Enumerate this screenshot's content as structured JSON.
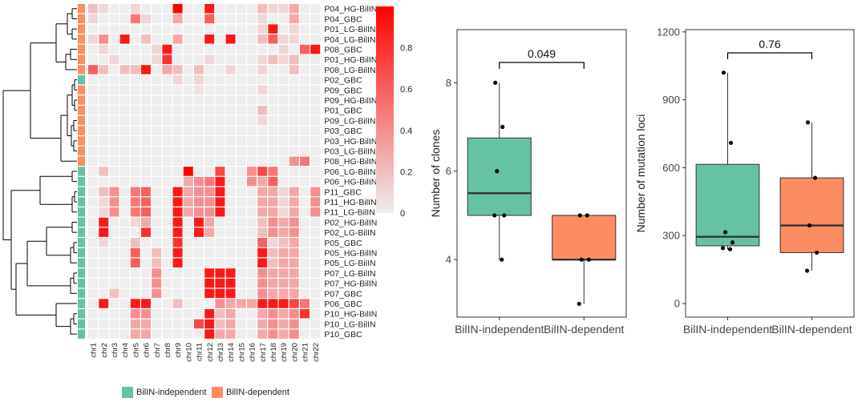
{
  "colors": {
    "independent": "#66c2a5",
    "dependent": "#fc8d62",
    "heat_high": "#ff0000",
    "heat_low": "#eeeeee",
    "box_border": "#333333"
  },
  "legend": {
    "items": [
      {
        "name": "BilIN-independent",
        "color": "#66c2a5"
      },
      {
        "name": "BilIN-dependent",
        "color": "#fc8d62"
      }
    ]
  },
  "chart_data": [
    {
      "type": "heatmap",
      "rows": [
        "P04_HG-BilIN",
        "P04_GBC",
        "P01_LG-BilIN",
        "P04_LG-BilIN",
        "P08_GBC",
        "P01_HG-BilIN",
        "P08_LG-BilIN",
        "P02_GBC",
        "P09_GBC",
        "P09_HG-BilIN",
        "P01_GBC",
        "P09_LG-BilIN",
        "P03_GBC",
        "P03_HG-BilIN",
        "P03_LG-BilIN",
        "P08_HG-BilIN",
        "P06_LG-BilIN",
        "P06_HG-BilIN",
        "P11_GBC",
        "P11_HG-BilIN",
        "P11_LG-BilIN",
        "P02_HG-BilIN",
        "P02_LG-BilIN",
        "P05_GBC",
        "P05_HG-BilIN",
        "P05_LG-BilIN",
        "P07_LG-BilIN",
        "P07_HG-BilIN",
        "P07_GBC",
        "P06_GBC",
        "P10_HG-BilIN",
        "P10_LG-BilIN",
        "P10_GBC"
      ],
      "row_groups": [
        "D",
        "D",
        "D",
        "D",
        "D",
        "D",
        "D",
        "I",
        "D",
        "D",
        "D",
        "D",
        "D",
        "D",
        "D",
        "D",
        "I",
        "I",
        "I",
        "I",
        "I",
        "I",
        "I",
        "I",
        "I",
        "I",
        "I",
        "I",
        "I",
        "I",
        "I",
        "I",
        "I"
      ],
      "columns": [
        "chr1",
        "chr2",
        "chr3",
        "chr4",
        "chr5",
        "chr6",
        "chr7",
        "chr8",
        "chr9",
        "chr10",
        "chr11",
        "chr12",
        "chr13",
        "chr14",
        "chr15",
        "chr16",
        "chr17",
        "chr18",
        "chr19",
        "chr20",
        "chr21",
        "chr22"
      ],
      "values": [
        [
          0.2,
          0.1,
          0,
          0,
          0.1,
          0,
          0,
          0,
          1.0,
          0,
          0,
          0.9,
          0,
          0,
          0,
          0,
          0.2,
          0.1,
          0.1,
          0.3,
          0,
          0
        ],
        [
          0.1,
          0,
          0,
          0,
          0.5,
          0.1,
          0,
          0,
          0.3,
          0,
          0,
          0.6,
          0,
          0,
          0,
          0,
          0.1,
          0,
          0,
          0.3,
          0,
          0
        ],
        [
          0,
          0,
          0,
          0,
          0,
          0,
          0,
          0,
          0,
          0,
          0,
          0,
          0,
          0,
          0,
          0,
          0.1,
          0.9,
          0,
          0.1,
          0,
          0
        ],
        [
          0.1,
          0.4,
          0,
          0.9,
          0,
          0.2,
          0,
          0,
          0.3,
          0,
          0,
          0.9,
          0,
          0.9,
          0,
          0,
          0.2,
          0.6,
          0.1,
          0.1,
          0,
          0
        ],
        [
          0,
          0.1,
          0,
          0,
          0,
          0,
          0.1,
          0.9,
          0,
          0,
          0,
          0,
          0,
          0,
          0,
          0,
          0,
          0,
          0.1,
          0,
          0.6,
          0.9
        ],
        [
          0,
          0,
          0.1,
          0,
          0,
          0,
          0.1,
          0.8,
          0,
          0,
          0,
          0.1,
          0,
          0,
          0,
          0,
          0.1,
          0.2,
          0.1,
          0.2,
          0,
          0
        ],
        [
          0.6,
          0.2,
          0,
          0.2,
          0.2,
          0.9,
          0,
          0.3,
          0.2,
          0,
          0.2,
          0,
          0,
          0.1,
          0,
          0,
          0.1,
          0,
          0,
          0.2,
          0,
          0
        ],
        [
          0,
          0,
          0,
          0,
          0,
          0,
          0,
          0,
          0.1,
          0,
          0.1,
          0,
          0,
          0,
          0,
          0,
          0,
          0,
          0,
          0,
          0,
          0
        ],
        [
          0,
          0,
          0,
          0,
          0,
          0,
          0,
          0,
          0,
          0,
          0.05,
          0,
          0,
          0,
          0,
          0,
          0.1,
          0,
          0,
          0,
          0,
          0
        ],
        [
          0,
          0,
          0,
          0,
          0,
          0,
          0,
          0,
          0,
          0,
          0,
          0,
          0,
          0,
          0,
          0,
          0,
          0,
          0,
          0,
          0,
          0
        ],
        [
          0,
          0,
          0,
          0,
          0,
          0,
          0,
          0,
          0,
          0,
          0,
          0,
          0,
          0,
          0,
          0,
          0.2,
          0,
          0,
          0,
          0,
          0
        ],
        [
          0,
          0,
          0,
          0,
          0,
          0,
          0,
          0,
          0,
          0,
          0,
          0,
          0,
          0,
          0,
          0,
          0.1,
          0,
          0,
          0,
          0,
          0
        ],
        [
          0,
          0,
          0,
          0,
          0,
          0,
          0,
          0,
          0,
          0,
          0,
          0,
          0,
          0,
          0,
          0,
          0,
          0,
          0,
          0,
          0,
          0
        ],
        [
          0,
          0,
          0,
          0,
          0,
          0,
          0,
          0,
          0,
          0,
          0,
          0,
          0,
          0,
          0,
          0,
          0,
          0,
          0,
          0,
          0,
          0
        ],
        [
          0,
          0,
          0,
          0,
          0,
          0,
          0,
          0,
          0,
          0,
          0,
          0,
          0,
          0,
          0,
          0,
          0,
          0,
          0,
          0,
          0,
          0
        ],
        [
          0,
          0,
          0,
          0,
          0,
          0,
          0,
          0,
          0,
          0,
          0,
          0,
          0,
          0,
          0,
          0,
          0,
          0,
          0,
          0.4,
          0.5,
          0
        ],
        [
          0,
          0.2,
          0,
          0,
          0,
          0,
          0,
          0,
          0,
          1.0,
          0,
          0,
          0.7,
          0,
          0,
          0.4,
          0.7,
          0.5,
          0,
          0,
          0,
          0
        ],
        [
          0,
          0,
          0,
          0,
          0,
          0,
          0,
          0,
          0,
          0.3,
          0.4,
          0.5,
          0.9,
          0,
          0,
          0.4,
          0.3,
          0.6,
          0,
          0,
          0,
          0
        ],
        [
          0,
          0.2,
          0.4,
          0,
          0.5,
          0.6,
          0,
          0,
          0.9,
          0.3,
          0.4,
          0.4,
          0.9,
          0,
          0,
          0,
          0.3,
          0.3,
          0.1,
          0.3,
          0,
          0.4
        ],
        [
          0,
          0.1,
          0.4,
          0,
          0.5,
          0.6,
          0,
          0,
          0.9,
          0.3,
          0.4,
          0.4,
          0.9,
          0,
          0,
          0,
          0.3,
          0.3,
          0.1,
          0.3,
          0,
          0.4
        ],
        [
          0,
          0.1,
          0.4,
          0,
          0.5,
          0.6,
          0,
          0,
          0.9,
          0.3,
          0.4,
          0.4,
          0.9,
          0,
          0,
          0,
          0.3,
          0.3,
          0.1,
          0.3,
          0,
          0.4
        ],
        [
          0,
          0.9,
          0,
          0,
          0.1,
          0.3,
          0,
          0,
          0.9,
          0,
          0.9,
          0.3,
          0,
          0,
          0,
          0,
          0.2,
          0.4,
          0.3,
          0.4,
          0,
          0
        ],
        [
          0,
          0.9,
          0,
          0,
          0,
          0.8,
          0,
          0,
          0.9,
          0,
          0.9,
          0.3,
          0,
          0,
          0,
          0,
          0.2,
          0.4,
          0.3,
          0.4,
          0,
          0
        ],
        [
          0,
          0.1,
          0,
          0,
          0.2,
          0,
          0,
          0,
          0.8,
          0,
          0,
          0,
          0,
          0,
          0,
          0,
          0.6,
          0.1,
          0.2,
          0.3,
          0,
          0
        ],
        [
          0,
          0,
          0,
          0,
          0.6,
          0,
          0.2,
          0,
          0.9,
          0,
          0,
          0,
          0,
          0,
          0,
          0,
          0.9,
          0.2,
          0.3,
          0.3,
          0,
          0
        ],
        [
          0,
          0,
          0,
          0,
          0.6,
          0,
          0.2,
          0,
          0.9,
          0,
          0,
          0,
          0,
          0,
          0,
          0,
          0.9,
          0.2,
          0.3,
          0.3,
          0,
          0
        ],
        [
          0,
          0,
          0,
          0,
          0,
          0,
          0.4,
          0,
          0,
          0,
          0,
          0.9,
          0.9,
          0.9,
          0,
          0,
          0.4,
          0.3,
          0.3,
          0.3,
          0,
          0
        ],
        [
          0,
          0,
          0,
          0,
          0,
          0,
          0.4,
          0,
          0,
          0,
          0,
          0.9,
          0.9,
          0.9,
          0,
          0,
          0.4,
          0.3,
          0.3,
          0.3,
          0,
          0
        ],
        [
          0,
          0,
          0.2,
          0,
          0,
          0,
          0.4,
          0,
          0,
          0,
          0,
          0.9,
          0.9,
          0.9,
          0,
          0,
          0.4,
          0.3,
          0.3,
          0.3,
          0,
          0
        ],
        [
          0,
          0.9,
          0,
          0,
          0.9,
          0.9,
          0,
          0,
          0.2,
          0,
          0,
          0,
          0.4,
          0.3,
          0.3,
          0.3,
          0.9,
          0.9,
          0.9,
          0.7,
          0.5,
          0
        ],
        [
          0,
          0,
          0,
          0,
          0.4,
          0.4,
          0,
          0,
          0,
          0,
          0,
          0.9,
          0.2,
          0.3,
          0,
          0,
          0.3,
          0.4,
          0.3,
          0.4,
          0.8,
          0
        ],
        [
          0,
          0,
          0,
          0,
          0.3,
          0.3,
          0,
          0,
          0,
          0,
          0.7,
          0.9,
          0.2,
          0.3,
          0,
          0,
          0.3,
          0.4,
          0.3,
          0.4,
          0,
          0
        ],
        [
          0,
          0,
          0,
          0,
          0.3,
          0.3,
          0,
          0,
          0,
          0,
          0,
          0.9,
          0.3,
          0.3,
          0,
          0,
          0.3,
          0.4,
          0.3,
          0.4,
          0,
          0
        ]
      ],
      "colorbar": {
        "range": [
          0,
          1
        ],
        "ticks": [
          "0",
          "0.2",
          "0.4",
          "0.6",
          "0.8"
        ],
        "tick_values": [
          0,
          0.2,
          0.4,
          0.6,
          0.8
        ]
      }
    },
    {
      "type": "box",
      "ylabel": "Number of clones",
      "ylim": [
        2.7,
        9.2
      ],
      "yticks": [
        4,
        6,
        8
      ],
      "categories": [
        "BilIN-independent",
        "BilIN-dependent"
      ],
      "boxes": [
        {
          "name": "BilIN-independent",
          "q1": 5,
          "median": 5.5,
          "q3": 6.75,
          "whisker_low": 4,
          "whisker_high": 8,
          "points": [
            8,
            7,
            6,
            5,
            5,
            4
          ],
          "color": "#66c2a5"
        },
        {
          "name": "BilIN-dependent",
          "q1": 4,
          "median": 4,
          "q3": 5,
          "whisker_low": 3,
          "whisker_high": 5,
          "points": [
            5,
            5,
            4,
            4,
            3
          ],
          "color": "#fc8d62"
        }
      ],
      "pvalue": "0.049"
    },
    {
      "type": "box",
      "ylabel": "Number of mutation loci",
      "ylim": [
        -60,
        1210
      ],
      "yticks": [
        0,
        300,
        600,
        900,
        1200
      ],
      "categories": [
        "BilIN-independent",
        "BilIN-dependent"
      ],
      "boxes": [
        {
          "name": "BilIN-independent",
          "q1": 255,
          "median": 295,
          "q3": 615,
          "whisker_low": 240,
          "whisker_high": 1020,
          "points": [
            1020,
            710,
            315,
            270,
            245,
            240
          ],
          "color": "#66c2a5"
        },
        {
          "name": "BilIN-dependent",
          "q1": 225,
          "median": 345,
          "q3": 555,
          "whisker_low": 145,
          "whisker_high": 800,
          "points": [
            800,
            555,
            345,
            225,
            145
          ],
          "color": "#fc8d62"
        }
      ],
      "pvalue": "0.76"
    }
  ]
}
